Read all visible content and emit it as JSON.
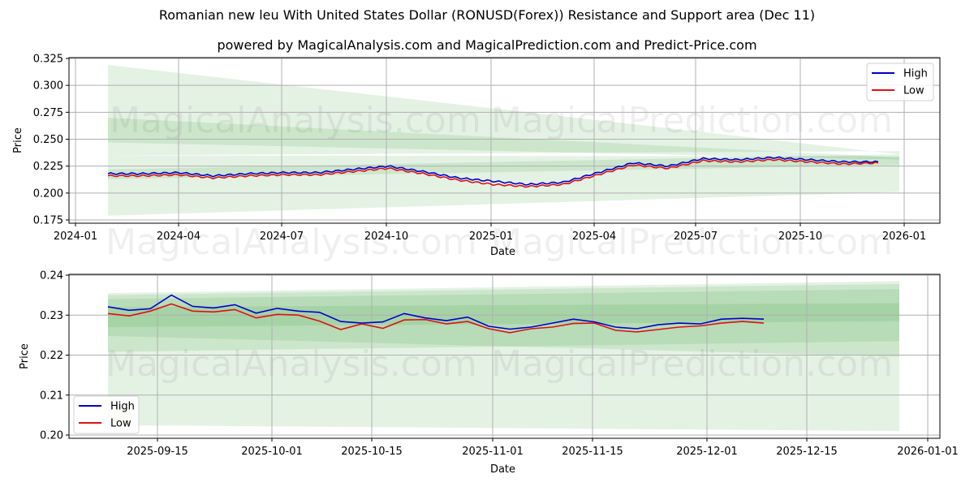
{
  "header": {
    "title": "Romanian new leu With United States Dollar (RONUSD(Forex)) Resistance and Support area (Dec 11)",
    "subtitle": "powered by MagicalAnalysis.com and MagicalPrediction.com and Predict-Price.com"
  },
  "watermarks": [
    "MagicalAnalysis.com",
    "MagicalPrediction.com"
  ],
  "colors": {
    "high": "#0000cc",
    "low": "#dd1111",
    "band": "#2e9a2e",
    "grid": "#b0b0b0"
  },
  "chart_data": [
    {
      "type": "line",
      "title": "Romanian new leu With United States Dollar (RONUSD(Forex)) Resistance and Support area (Dec 11)",
      "xlabel": "Date",
      "ylabel": "Price",
      "ylim": [
        0.175,
        0.325
      ],
      "grid": true,
      "legend_position": "upper right",
      "legend": [
        "High",
        "Low"
      ],
      "x_ticks": [
        "2024-01",
        "2024-04",
        "2024-07",
        "2024-10",
        "2025-01",
        "2025-04",
        "2025-07",
        "2025-10",
        "2026-01"
      ],
      "y_ticks": [
        "0.175",
        "0.200",
        "0.225",
        "0.250",
        "0.275",
        "0.300",
        "0.325"
      ],
      "x": [
        "2024-02",
        "2024-03",
        "2024-04",
        "2024-05",
        "2024-06",
        "2024-07",
        "2024-08",
        "2024-09",
        "2024-10",
        "2024-11",
        "2024-12",
        "2025-01",
        "2025-02",
        "2025-03",
        "2025-04",
        "2025-05",
        "2025-06",
        "2025-07",
        "2025-08",
        "2025-09",
        "2025-10",
        "2025-11",
        "2025-12"
      ],
      "series": [
        {
          "name": "High",
          "values": [
            0.218,
            0.218,
            0.219,
            0.216,
            0.218,
            0.219,
            0.219,
            0.222,
            0.225,
            0.22,
            0.214,
            0.211,
            0.208,
            0.21,
            0.219,
            0.228,
            0.225,
            0.232,
            0.231,
            0.233,
            0.231,
            0.229,
            0.229
          ]
        },
        {
          "name": "Low",
          "values": [
            0.216,
            0.216,
            0.217,
            0.214,
            0.216,
            0.217,
            0.217,
            0.22,
            0.223,
            0.218,
            0.212,
            0.208,
            0.206,
            0.208,
            0.217,
            0.226,
            0.223,
            0.23,
            0.229,
            0.231,
            0.229,
            0.227,
            0.228
          ]
        }
      ],
      "bands": [
        {
          "name": "outer-upper",
          "start": [
            0.319,
            0.235
          ],
          "end": [
            0.236,
            0.239
          ]
        },
        {
          "name": "mid-upper",
          "start": [
            0.27,
            0.247
          ],
          "end": [
            0.233,
            0.231
          ]
        },
        {
          "name": "inner",
          "start": [
            0.222,
            0.213
          ],
          "end": [
            0.236,
            0.226
          ]
        },
        {
          "name": "outer-lower",
          "start": [
            0.235,
            0.179
          ],
          "end": [
            0.234,
            0.201
          ]
        }
      ]
    },
    {
      "type": "line",
      "xlabel": "Date",
      "ylabel": "Price",
      "ylim": [
        0.199,
        0.24
      ],
      "grid": true,
      "legend_position": "lower left",
      "legend": [
        "High",
        "Low"
      ],
      "x_ticks": [
        "2025-09-15",
        "2025-10-01",
        "2025-10-15",
        "2025-11-01",
        "2025-11-15",
        "2025-12-01",
        "2025-12-15",
        "2026-01-01"
      ],
      "y_ticks": [
        "0.20",
        "0.21",
        "0.22",
        "0.23",
        "0.24"
      ],
      "x": [
        "2025-09-08",
        "2025-09-11",
        "2025-09-14",
        "2025-09-17",
        "2025-09-20",
        "2025-09-23",
        "2025-09-26",
        "2025-09-29",
        "2025-10-02",
        "2025-10-05",
        "2025-10-08",
        "2025-10-11",
        "2025-10-14",
        "2025-10-17",
        "2025-10-20",
        "2025-10-23",
        "2025-10-26",
        "2025-10-29",
        "2025-11-01",
        "2025-11-04",
        "2025-11-07",
        "2025-11-10",
        "2025-11-13",
        "2025-11-16",
        "2025-11-19",
        "2025-11-22",
        "2025-11-25",
        "2025-11-28",
        "2025-12-01",
        "2025-12-04",
        "2025-12-07",
        "2025-12-10"
      ],
      "series": [
        {
          "name": "High",
          "values": [
            0.2321,
            0.2312,
            0.2316,
            0.235,
            0.2322,
            0.2318,
            0.2326,
            0.2305,
            0.2317,
            0.231,
            0.2307,
            0.2284,
            0.228,
            0.2283,
            0.2304,
            0.2293,
            0.2286,
            0.2295,
            0.2272,
            0.2265,
            0.227,
            0.228,
            0.229,
            0.2283,
            0.227,
            0.2266,
            0.2276,
            0.228,
            0.2278,
            0.229,
            0.2292,
            0.229
          ]
        },
        {
          "name": "Low",
          "values": [
            0.2304,
            0.2298,
            0.231,
            0.2328,
            0.231,
            0.2308,
            0.2314,
            0.2293,
            0.2302,
            0.23,
            0.2285,
            0.2264,
            0.2278,
            0.2267,
            0.2288,
            0.2289,
            0.2278,
            0.2284,
            0.2266,
            0.2256,
            0.2266,
            0.227,
            0.2279,
            0.228,
            0.2262,
            0.2258,
            0.2264,
            0.227,
            0.2273,
            0.228,
            0.2284,
            0.228
          ]
        }
      ],
      "bands": [
        {
          "name": "outer",
          "start": [
            0.2355,
            0.2025
          ],
          "end": [
            0.2385,
            0.201
          ]
        },
        {
          "name": "upper-mid",
          "start": [
            0.235,
            0.2208
          ],
          "end": [
            0.2378,
            0.2235
          ]
        },
        {
          "name": "mid",
          "start": [
            0.234,
            0.2248
          ],
          "end": [
            0.2365,
            0.2196
          ]
        },
        {
          "name": "inner",
          "start": [
            0.232,
            0.227
          ],
          "end": [
            0.233,
            0.2285
          ]
        }
      ]
    }
  ]
}
